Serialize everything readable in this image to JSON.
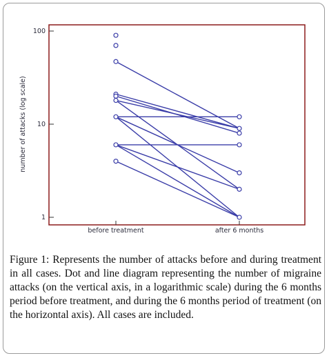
{
  "figure": {
    "label": "Figure 1:",
    "caption": "Represents the number of attacks before and during treatment in all cases. Dot and line diagram representing the number of migraine attacks (on the vertical axis, in a logarithmic scale) during the 6 months period before treatment, and during the 6 months period of treatment (on the horizontal axis). All cases are included."
  },
  "chart_data": {
    "type": "line",
    "ylabel": "number of attacks (log scale)",
    "xlabel": "",
    "y_scale": "log",
    "ylim": [
      1,
      100
    ],
    "y_ticks": [
      "100",
      "10",
      "1"
    ],
    "categories": [
      "before treatment",
      "after 6 months"
    ],
    "pairs": [
      [
        47,
        9
      ],
      [
        21,
        9
      ],
      [
        20,
        8
      ],
      [
        18,
        9
      ],
      [
        18,
        2
      ],
      [
        12,
        12
      ],
      [
        12,
        3
      ],
      [
        12,
        1
      ],
      [
        6,
        6
      ],
      [
        6,
        2
      ],
      [
        6,
        1
      ],
      [
        4,
        1
      ]
    ],
    "unpaired_points": [
      [
        0,
        90
      ],
      [
        0,
        70
      ]
    ],
    "colors": {
      "line": "#3a3da8",
      "frame": "#8b1a1a",
      "marker_fill": "#ffffff"
    }
  }
}
